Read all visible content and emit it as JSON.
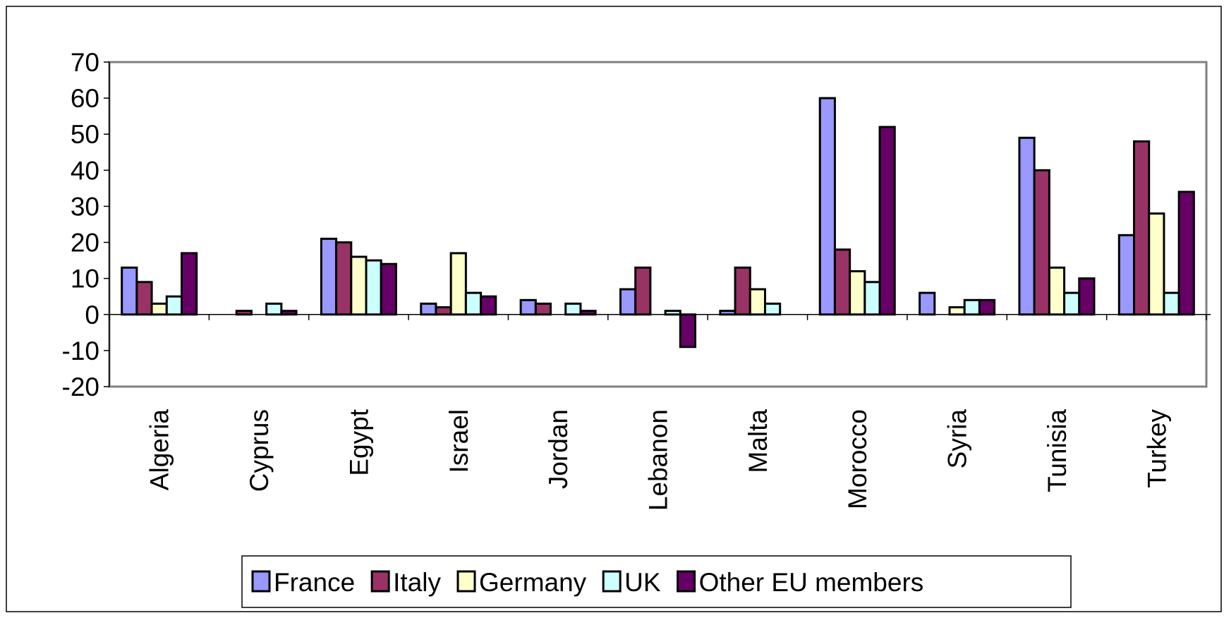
{
  "chart_data": {
    "type": "bar",
    "categories": [
      "Algeria",
      "Cyprus",
      "Egypt",
      "Israel",
      "Jordan",
      "Lebanon",
      "Malta",
      "Morocco",
      "Syria",
      "Tunisia",
      "Turkey"
    ],
    "series": [
      {
        "name": "France",
        "color": "#9999ff",
        "values": [
          13,
          0,
          21,
          3,
          4,
          7,
          1,
          60,
          6,
          49,
          22
        ]
      },
      {
        "name": "Italy",
        "color": "#993366",
        "values": [
          9,
          1,
          20,
          2,
          3,
          13,
          13,
          18,
          0,
          40,
          48
        ]
      },
      {
        "name": "Germany",
        "color": "#ffffcc",
        "values": [
          3,
          0,
          16,
          17,
          0,
          0,
          7,
          12,
          2,
          13,
          28
        ]
      },
      {
        "name": "UK",
        "color": "#ccffff",
        "values": [
          5,
          3,
          15,
          6,
          3,
          1,
          3,
          9,
          4,
          6,
          6
        ]
      },
      {
        "name": "Other EU members",
        "color": "#660066",
        "values": [
          17,
          1,
          14,
          5,
          1,
          -9,
          0,
          52,
          4,
          10,
          34
        ]
      }
    ],
    "ylim": [
      -20,
      70
    ],
    "yticks": [
      -20,
      -10,
      0,
      10,
      20,
      30,
      40,
      50,
      60,
      70
    ],
    "grid": false,
    "legend": "bottom"
  }
}
